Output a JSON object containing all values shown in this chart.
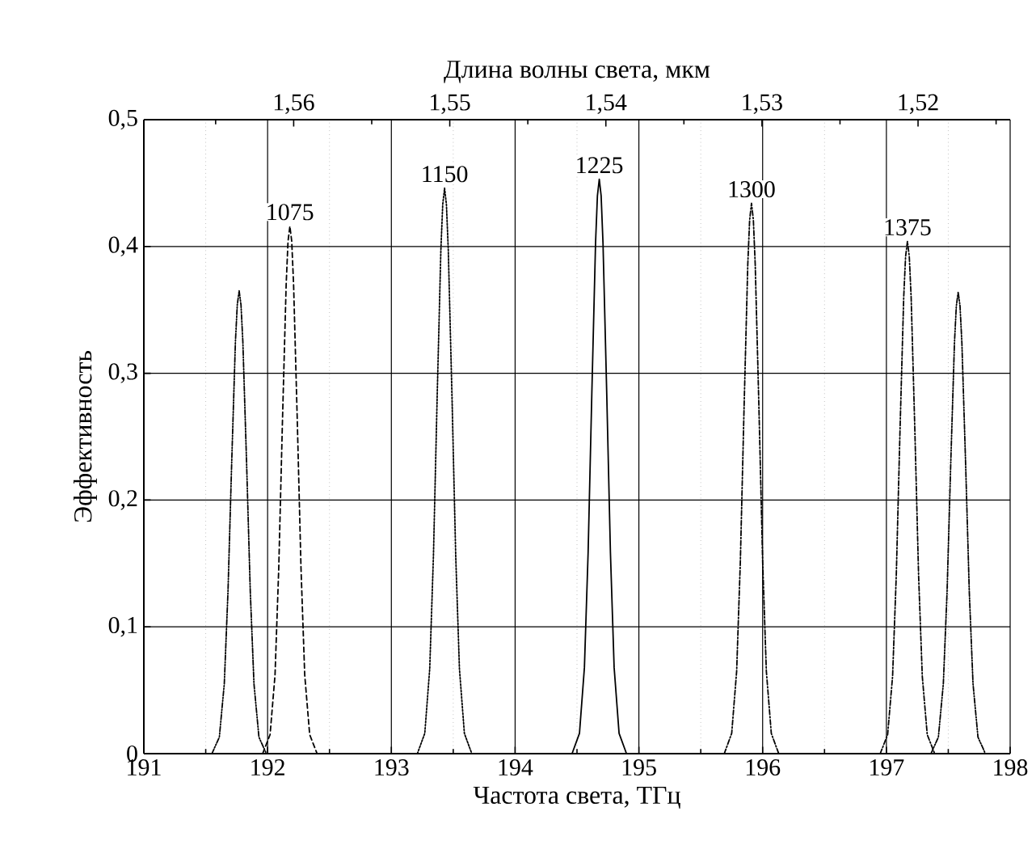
{
  "chart_data": {
    "type": "line",
    "xlabel": "Частота света, ТГц",
    "ylabel": "Эффективность",
    "x2label": "Длина волны света, мкм",
    "xlim": [
      191,
      198
    ],
    "ylim": [
      0,
      0.5
    ],
    "xticks": [
      191,
      {
        "value": 191.5,
        "label": null
      },
      192,
      {
        "value": 192.5,
        "label": null
      },
      193,
      {
        "value": 193.5,
        "label": null
      },
      194,
      {
        "value": 194.5,
        "label": null
      },
      195,
      {
        "value": 195.5,
        "label": null
      },
      196,
      {
        "value": 196.5,
        "label": null
      },
      197,
      {
        "value": 197.5,
        "label": null
      },
      198
    ],
    "yticks": [
      0,
      {
        "value": 0.1,
        "label": "0,1"
      },
      {
        "value": 0.2,
        "label": "0,2"
      },
      {
        "value": 0.3,
        "label": "0,3"
      },
      {
        "value": 0.4,
        "label": "0,4"
      },
      {
        "value": 0.5,
        "label": "0,5"
      }
    ],
    "x2lim": [
      1.5696,
      1.5141
    ],
    "x2ticks": [
      {
        "value": 1.565,
        "label": null
      },
      {
        "value": 1.56,
        "label": "1,56"
      },
      {
        "value": 1.555,
        "label": null
      },
      {
        "value": 1.55,
        "label": "1,55"
      },
      {
        "value": 1.545,
        "label": null
      },
      {
        "value": 1.54,
        "label": "1,54"
      },
      {
        "value": 1.535,
        "label": null
      },
      {
        "value": 1.53,
        "label": "1,53"
      },
      {
        "value": 1.525,
        "label": null
      },
      {
        "value": 1.52,
        "label": "1,52"
      },
      {
        "value": 1.515,
        "label": null
      }
    ],
    "grid": true,
    "annotations": [
      {
        "text": "1075",
        "x": 192.18,
        "y": 0.416
      },
      {
        "text": "1150",
        "x": 193.43,
        "y": 0.446
      },
      {
        "text": "1225",
        "x": 194.68,
        "y": 0.453
      },
      {
        "text": "1300",
        "x": 195.91,
        "y": 0.434
      },
      {
        "text": "1375",
        "x": 197.17,
        "y": 0.404
      }
    ],
    "series": [
      {
        "color": "#000000",
        "line_style": "dashdotdot",
        "x": [
          191.55,
          191.61,
          191.65,
          191.68,
          191.71,
          191.74,
          191.755,
          191.77,
          191.785,
          191.8,
          191.83,
          191.86,
          191.89,
          191.93,
          191.99
        ],
        "values": [
          0,
          0.013,
          0.055,
          0.128,
          0.23,
          0.325,
          0.354,
          0.365,
          0.354,
          0.325,
          0.23,
          0.128,
          0.055,
          0.013,
          0
        ]
      },
      {
        "color": "#000000",
        "line_style": "dashed",
        "x": [
          191.96,
          192.02,
          192.06,
          192.09,
          192.12,
          192.15,
          192.165,
          192.18,
          192.195,
          192.21,
          192.24,
          192.27,
          192.3,
          192.34,
          192.4
        ],
        "values": [
          0,
          0.015,
          0.062,
          0.146,
          0.262,
          0.37,
          0.404,
          0.416,
          0.404,
          0.37,
          0.262,
          0.146,
          0.062,
          0.015,
          0
        ]
      },
      {
        "color": "#000000",
        "line_style": "dotted",
        "x": [
          193.21,
          193.27,
          193.31,
          193.34,
          193.37,
          193.4,
          193.415,
          193.43,
          193.445,
          193.46,
          193.49,
          193.52,
          193.55,
          193.59,
          193.65
        ],
        "values": [
          0,
          0.016,
          0.067,
          0.156,
          0.281,
          0.397,
          0.433,
          0.446,
          0.433,
          0.397,
          0.281,
          0.156,
          0.067,
          0.016,
          0
        ]
      },
      {
        "color": "#000000",
        "line_style": "solid",
        "x": [
          194.46,
          194.52,
          194.56,
          194.59,
          194.62,
          194.65,
          194.665,
          194.68,
          194.695,
          194.71,
          194.74,
          194.77,
          194.8,
          194.84,
          194.9
        ],
        "values": [
          0,
          0.016,
          0.068,
          0.159,
          0.285,
          0.403,
          0.44,
          0.453,
          0.44,
          0.403,
          0.285,
          0.159,
          0.068,
          0.016,
          0
        ]
      },
      {
        "color": "#000000",
        "line_style": "dashdot",
        "x": [
          195.69,
          195.75,
          195.79,
          195.82,
          195.85,
          195.88,
          195.895,
          195.91,
          195.925,
          195.94,
          195.97,
          196,
          196.03,
          196.07,
          196.13
        ],
        "values": [
          0,
          0.016,
          0.065,
          0.152,
          0.273,
          0.386,
          0.421,
          0.434,
          0.421,
          0.386,
          0.273,
          0.152,
          0.065,
          0.016,
          0
        ]
      },
      {
        "color": "#000000",
        "line_style": "dashdot",
        "x": [
          196.95,
          197.01,
          197.05,
          197.08,
          197.11,
          197.14,
          197.155,
          197.17,
          197.185,
          197.2,
          197.23,
          197.26,
          197.29,
          197.33,
          197.39
        ],
        "values": [
          0,
          0.015,
          0.061,
          0.141,
          0.255,
          0.36,
          0.392,
          0.404,
          0.392,
          0.36,
          0.255,
          0.141,
          0.061,
          0.015,
          0
        ]
      },
      {
        "color": "#000000",
        "line_style": "dashdotdot",
        "x": [
          197.36,
          197.42,
          197.46,
          197.49,
          197.52,
          197.55,
          197.565,
          197.58,
          197.595,
          197.61,
          197.64,
          197.67,
          197.7,
          197.74,
          197.8
        ],
        "values": [
          0,
          0.013,
          0.055,
          0.127,
          0.229,
          0.324,
          0.353,
          0.364,
          0.353,
          0.324,
          0.229,
          0.127,
          0.055,
          0.013,
          0
        ]
      }
    ]
  }
}
